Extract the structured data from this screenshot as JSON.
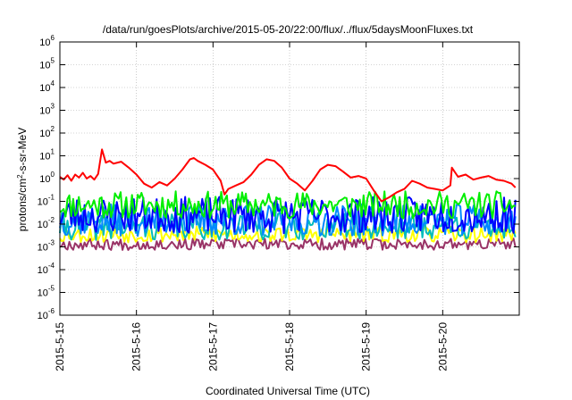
{
  "chart_data": {
    "type": "line",
    "title": "/data/run/goesPlots/archive/2015-05-20/22:00/flux/../flux/5daysMoonFluxes.txt",
    "xlabel": "Coordinated Universal Time (UTC)",
    "ylabel": {
      "base": "protons/cm",
      "sup": "2",
      "rest": "-s-sr-MeV"
    },
    "xlim": [
      0,
      6
    ],
    "x_unit": "days since 2015-5-15 00:00 UTC",
    "x_ticks": [
      {
        "value": 0,
        "label": "2015-5-15"
      },
      {
        "value": 1,
        "label": "2015-5-16"
      },
      {
        "value": 2,
        "label": "2015-5-17"
      },
      {
        "value": 3,
        "label": "2015-5-18"
      },
      {
        "value": 4,
        "label": "2015-5-19"
      },
      {
        "value": 5,
        "label": "2015-5-20"
      }
    ],
    "y_scale": "log",
    "ylim": [
      1e-06,
      1000000.0
    ],
    "y_ticks": [
      {
        "value": 1e-06,
        "base": "10",
        "exp": "-6"
      },
      {
        "value": 1e-05,
        "base": "10",
        "exp": "-5"
      },
      {
        "value": 0.0001,
        "base": "10",
        "exp": "-4"
      },
      {
        "value": 0.001,
        "base": "10",
        "exp": "-3"
      },
      {
        "value": 0.01,
        "base": "10",
        "exp": "-2"
      },
      {
        "value": 0.1,
        "base": "10",
        "exp": "-1"
      },
      {
        "value": 1.0,
        "base": "10",
        "exp": "0"
      },
      {
        "value": 10.0,
        "base": "10",
        "exp": "1"
      },
      {
        "value": 100.0,
        "base": "10",
        "exp": "2"
      },
      {
        "value": 1000.0,
        "base": "10",
        "exp": "3"
      },
      {
        "value": 10000.0,
        "base": "10",
        "exp": "4"
      },
      {
        "value": 100000.0,
        "base": "10",
        "exp": "5"
      },
      {
        "value": 1000000.0,
        "base": "10",
        "exp": "6"
      }
    ],
    "grid": true,
    "series": [
      {
        "color": "#ff0000",
        "x": [
          0.0,
          0.05,
          0.1,
          0.15,
          0.2,
          0.25,
          0.3,
          0.35,
          0.4,
          0.45,
          0.5,
          0.55,
          0.6,
          0.65,
          0.7,
          0.8,
          0.9,
          1.0,
          1.1,
          1.2,
          1.3,
          1.4,
          1.5,
          1.6,
          1.7,
          1.75,
          1.8,
          1.9,
          2.0,
          2.1,
          2.15,
          2.2,
          2.3,
          2.4,
          2.5,
          2.6,
          2.7,
          2.8,
          2.9,
          3.0,
          3.1,
          3.2,
          3.3,
          3.4,
          3.5,
          3.6,
          3.7,
          3.8,
          3.9,
          4.0,
          4.1,
          4.2,
          4.3,
          4.4,
          4.5,
          4.6,
          4.7,
          4.8,
          4.9,
          5.0,
          5.1,
          5.12,
          5.2,
          5.3,
          5.4,
          5.5,
          5.6,
          5.7,
          5.8,
          5.9,
          5.95
        ],
        "y": [
          1.2,
          0.9,
          1.4,
          0.8,
          1.5,
          1.1,
          1.8,
          1.0,
          1.3,
          0.9,
          1.6,
          19,
          5,
          6,
          4.5,
          5.5,
          3,
          1.5,
          0.6,
          0.4,
          0.7,
          0.5,
          1.0,
          2.5,
          7,
          8,
          6,
          4,
          2.5,
          0.8,
          0.2,
          0.35,
          0.5,
          0.7,
          1.5,
          4,
          7,
          6,
          3,
          1.0,
          0.6,
          0.3,
          0.8,
          2.5,
          4,
          3.5,
          2,
          1.1,
          1.3,
          1.0,
          0.3,
          0.1,
          0.15,
          0.25,
          0.35,
          0.8,
          0.6,
          0.4,
          0.35,
          0.3,
          0.5,
          3,
          1.2,
          1.5,
          0.9,
          1.1,
          1.3,
          0.9,
          0.8,
          0.6,
          0.4
        ]
      },
      {
        "color": "#00ee00",
        "level": 0.07,
        "spread": 0.6,
        "seed": 11
      },
      {
        "color": "#0000ff",
        "level": 0.025,
        "spread": 0.8,
        "seed": 23
      },
      {
        "color": "#0088ff",
        "level": 0.015,
        "spread": 0.7,
        "seed": 37
      },
      {
        "color": "#00bbbb",
        "level": 0.008,
        "spread": 0.6,
        "seed": 41
      },
      {
        "color": "#ffff00",
        "level": 0.0035,
        "spread": 0.35,
        "seed": 53
      },
      {
        "color": "#993366",
        "level": 0.0013,
        "spread": 0.25,
        "seed": 67
      }
    ]
  }
}
